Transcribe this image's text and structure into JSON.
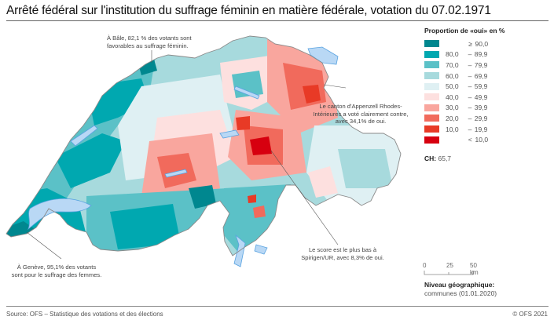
{
  "header": {
    "title": "Arrêté fédéral sur l'institution du suffrage féminin en matière fédérale, votation du 07.02.1971"
  },
  "legend": {
    "title": "Proportion de «oui» en %",
    "classes": [
      {
        "lo": "≥",
        "dash": "",
        "hi": "90,0",
        "color": "#00878f"
      },
      {
        "lo": "80,0",
        "dash": "–",
        "hi": "89,9",
        "color": "#00a8b0"
      },
      {
        "lo": "70,0",
        "dash": "–",
        "hi": "79,9",
        "color": "#5bc1c7"
      },
      {
        "lo": "60,0",
        "dash": "–",
        "hi": "69,9",
        "color": "#a7dadd"
      },
      {
        "lo": "50,0",
        "dash": "–",
        "hi": "59,9",
        "color": "#dff0f3"
      },
      {
        "lo": "40,0",
        "dash": "–",
        "hi": "49,9",
        "color": "#fde0df"
      },
      {
        "lo": "30,0",
        "dash": "–",
        "hi": "39,9",
        "color": "#f9a69e"
      },
      {
        "lo": "20,0",
        "dash": "–",
        "hi": "29,9",
        "color": "#f16a5c"
      },
      {
        "lo": "10,0",
        "dash": "–",
        "hi": "19,9",
        "color": "#e83a26"
      },
      {
        "lo": "<",
        "dash": "",
        "hi": "10,0",
        "color": "#d7000f"
      }
    ]
  },
  "summary": {
    "ch_label": "CH:",
    "ch_value": "65,7"
  },
  "scale_bar": {
    "labels": [
      "0",
      "25",
      "50 km"
    ]
  },
  "geo_level": {
    "heading": "Niveau géographique:",
    "value": "communes (01.01.2020)"
  },
  "annotations": {
    "basel": [
      "À Bâle, 82,1 % des votants sont",
      "favorables au suffrage féminin."
    ],
    "appenzell": [
      "Le canton d'Appenzell Rhodes-",
      "Intérieures a voté clairement contre,",
      "avec 34,1% de oui."
    ],
    "spiringen": [
      "Le score est le plus bas à",
      "Spirigen/UR, avec 8,3% de oui."
    ],
    "geneve": [
      "À Genève, 95,1% des votants",
      "sont pour le suffrage des femmes."
    ]
  },
  "map_colors": {
    "lake": "#b9d8f5",
    "lake_stroke": "#5aa3e0",
    "border": "#8a8a8a"
  },
  "footer": {
    "source": "Source: OFS – Statistique des votations et des élections",
    "copyright": "© OFS 2021"
  }
}
